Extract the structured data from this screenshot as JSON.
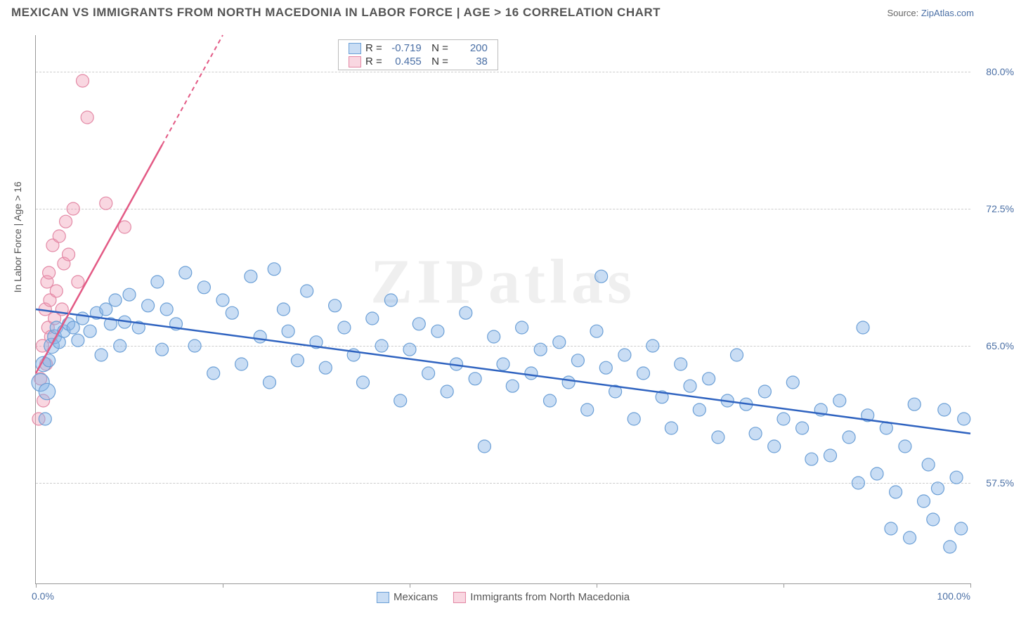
{
  "header": {
    "title": "MEXICAN VS IMMIGRANTS FROM NORTH MACEDONIA IN LABOR FORCE | AGE > 16 CORRELATION CHART",
    "source_prefix": "Source: ",
    "source_link": "ZipAtlas.com"
  },
  "watermark": "ZIPatlas",
  "chart": {
    "type": "scatter",
    "ylabel": "In Labor Force | Age > 16",
    "xlim": [
      0,
      100
    ],
    "ylim": [
      52,
      82
    ],
    "xtick_positions": [
      0,
      20,
      40,
      60,
      80,
      100
    ],
    "xtick_labels": {
      "0": "0.0%",
      "100": "100.0%"
    },
    "ytick_positions": [
      57.5,
      65.0,
      72.5,
      80.0
    ],
    "ytick_labels": [
      "57.5%",
      "65.0%",
      "72.5%",
      "80.0%"
    ],
    "background_color": "#ffffff",
    "grid_color": "#cccccc",
    "marker_radius_base": 9,
    "series": [
      {
        "id": "mexicans",
        "label": "Mexicans",
        "fill": "rgba(135,180,230,0.45)",
        "stroke": "#6b9fd6",
        "trend_color": "#2f63c0",
        "trend": {
          "x1": 0,
          "y1": 67.0,
          "x2": 100,
          "y2": 60.2
        },
        "r_value": "-0.719",
        "n_value": "200",
        "points": [
          [
            0.5,
            63.0,
            1.4
          ],
          [
            0.8,
            64.0,
            1.2
          ],
          [
            1.0,
            61.0,
            1.0
          ],
          [
            1.2,
            62.5,
            1.3
          ],
          [
            1.4,
            64.2,
            1.0
          ],
          [
            1.7,
            65.0,
            1.2
          ],
          [
            2.0,
            65.5,
            1.1
          ],
          [
            2.2,
            66.0,
            1.0
          ],
          [
            2.5,
            65.2,
            1.0
          ],
          [
            3.0,
            65.8,
            1.0
          ],
          [
            3.5,
            66.2,
            1.0
          ],
          [
            4.0,
            66.0,
            1.0
          ],
          [
            4.5,
            65.3,
            1.0
          ],
          [
            5.0,
            66.5,
            1.0
          ],
          [
            5.8,
            65.8,
            1.0
          ],
          [
            6.5,
            66.8,
            1.0
          ],
          [
            7.0,
            64.5,
            1.0
          ],
          [
            7.5,
            67.0,
            1.0
          ],
          [
            8.0,
            66.2,
            1.0
          ],
          [
            8.5,
            67.5,
            1.0
          ],
          [
            9.0,
            65.0,
            1.0
          ],
          [
            9.5,
            66.3,
            1.0
          ],
          [
            10.0,
            67.8,
            1.0
          ],
          [
            11.0,
            66.0,
            1.0
          ],
          [
            12.0,
            67.2,
            1.0
          ],
          [
            13.0,
            68.5,
            1.0
          ],
          [
            13.5,
            64.8,
            1.0
          ],
          [
            14.0,
            67.0,
            1.0
          ],
          [
            15.0,
            66.2,
            1.0
          ],
          [
            16.0,
            69.0,
            1.0
          ],
          [
            17.0,
            65.0,
            1.0
          ],
          [
            18.0,
            68.2,
            1.0
          ],
          [
            19.0,
            63.5,
            1.0
          ],
          [
            20.0,
            67.5,
            1.0
          ],
          [
            21.0,
            66.8,
            1.0
          ],
          [
            22.0,
            64.0,
            1.0
          ],
          [
            23.0,
            68.8,
            1.0
          ],
          [
            24.0,
            65.5,
            1.0
          ],
          [
            25.0,
            63.0,
            1.0
          ],
          [
            25.5,
            69.2,
            1.0
          ],
          [
            26.5,
            67.0,
            1.0
          ],
          [
            27.0,
            65.8,
            1.0
          ],
          [
            28.0,
            64.2,
            1.0
          ],
          [
            29.0,
            68.0,
            1.0
          ],
          [
            30.0,
            65.2,
            1.0
          ],
          [
            31.0,
            63.8,
            1.0
          ],
          [
            32.0,
            67.2,
            1.0
          ],
          [
            33.0,
            66.0,
            1.0
          ],
          [
            34.0,
            64.5,
            1.0
          ],
          [
            35.0,
            63.0,
            1.0
          ],
          [
            36.0,
            66.5,
            1.0
          ],
          [
            37.0,
            65.0,
            1.0
          ],
          [
            38.0,
            67.5,
            1.0
          ],
          [
            39.0,
            62.0,
            1.0
          ],
          [
            40.0,
            64.8,
            1.0
          ],
          [
            41.0,
            66.2,
            1.0
          ],
          [
            42.0,
            63.5,
            1.0
          ],
          [
            43.0,
            65.8,
            1.0
          ],
          [
            44.0,
            62.5,
            1.0
          ],
          [
            45.0,
            64.0,
            1.0
          ],
          [
            46.0,
            66.8,
            1.0
          ],
          [
            47.0,
            63.2,
            1.0
          ],
          [
            48.0,
            59.5,
            1.0
          ],
          [
            49.0,
            65.5,
            1.0
          ],
          [
            50.0,
            64.0,
            1.0
          ],
          [
            51.0,
            62.8,
            1.0
          ],
          [
            52.0,
            66.0,
            1.0
          ],
          [
            53.0,
            63.5,
            1.0
          ],
          [
            54.0,
            64.8,
            1.0
          ],
          [
            55.0,
            62.0,
            1.0
          ],
          [
            56.0,
            65.2,
            1.0
          ],
          [
            57.0,
            63.0,
            1.0
          ],
          [
            58.0,
            64.2,
            1.0
          ],
          [
            59.0,
            61.5,
            1.0
          ],
          [
            60.0,
            65.8,
            1.0
          ],
          [
            60.5,
            68.8,
            1.0
          ],
          [
            61.0,
            63.8,
            1.0
          ],
          [
            62.0,
            62.5,
            1.0
          ],
          [
            63.0,
            64.5,
            1.0
          ],
          [
            64.0,
            61.0,
            1.0
          ],
          [
            65.0,
            63.5,
            1.0
          ],
          [
            66.0,
            65.0,
            1.0
          ],
          [
            67.0,
            62.2,
            1.0
          ],
          [
            68.0,
            60.5,
            1.0
          ],
          [
            69.0,
            64.0,
            1.0
          ],
          [
            70.0,
            62.8,
            1.0
          ],
          [
            71.0,
            61.5,
            1.0
          ],
          [
            72.0,
            63.2,
            1.0
          ],
          [
            73.0,
            60.0,
            1.0
          ],
          [
            74.0,
            62.0,
            1.0
          ],
          [
            75.0,
            64.5,
            1.0
          ],
          [
            76.0,
            61.8,
            1.0
          ],
          [
            77.0,
            60.2,
            1.0
          ],
          [
            78.0,
            62.5,
            1.0
          ],
          [
            79.0,
            59.5,
            1.0
          ],
          [
            80.0,
            61.0,
            1.0
          ],
          [
            81.0,
            63.0,
            1.0
          ],
          [
            82.0,
            60.5,
            1.0
          ],
          [
            83.0,
            58.8,
            1.0
          ],
          [
            84.0,
            61.5,
            1.0
          ],
          [
            85.0,
            59.0,
            1.0
          ],
          [
            86.0,
            62.0,
            1.0
          ],
          [
            87.0,
            60.0,
            1.0
          ],
          [
            88.0,
            57.5,
            1.0
          ],
          [
            88.5,
            66.0,
            1.0
          ],
          [
            89.0,
            61.2,
            1.0
          ],
          [
            90.0,
            58.0,
            1.0
          ],
          [
            91.0,
            60.5,
            1.0
          ],
          [
            91.5,
            55.0,
            1.0
          ],
          [
            92.0,
            57.0,
            1.0
          ],
          [
            93.0,
            59.5,
            1.0
          ],
          [
            93.5,
            54.5,
            1.0
          ],
          [
            94.0,
            61.8,
            1.0
          ],
          [
            95.0,
            56.5,
            1.0
          ],
          [
            95.5,
            58.5,
            1.0
          ],
          [
            96.0,
            55.5,
            1.0
          ],
          [
            96.5,
            57.2,
            1.0
          ],
          [
            97.2,
            61.5,
            1.0
          ],
          [
            97.8,
            54.0,
            1.0
          ],
          [
            98.5,
            57.8,
            1.0
          ],
          [
            99.0,
            55.0,
            1.0
          ],
          [
            99.3,
            61.0,
            1.0
          ]
        ]
      },
      {
        "id": "macedonia",
        "label": "Immigrants from North Macedonia",
        "fill": "rgba(240,155,180,0.4)",
        "stroke": "#e388a5",
        "trend_color": "#e35a85",
        "trend": {
          "x1": 0,
          "y1": 63.5,
          "x2": 20,
          "y2": 82.0
        },
        "trend_dashed_after_y": 76,
        "r_value": "0.455",
        "n_value": "38",
        "points": [
          [
            0.3,
            61.0,
            1.0
          ],
          [
            0.5,
            63.2,
            1.0
          ],
          [
            0.7,
            65.0,
            1.0
          ],
          [
            0.8,
            62.0,
            1.0
          ],
          [
            1.0,
            67.0,
            1.0
          ],
          [
            1.1,
            64.0,
            1.0
          ],
          [
            1.2,
            68.5,
            1.0
          ],
          [
            1.3,
            66.0,
            1.0
          ],
          [
            1.4,
            69.0,
            1.0
          ],
          [
            1.5,
            67.5,
            1.0
          ],
          [
            1.6,
            65.5,
            1.0
          ],
          [
            1.8,
            70.5,
            1.0
          ],
          [
            2.0,
            66.5,
            1.0
          ],
          [
            2.2,
            68.0,
            1.0
          ],
          [
            2.5,
            71.0,
            1.0
          ],
          [
            2.8,
            67.0,
            1.0
          ],
          [
            3.0,
            69.5,
            1.0
          ],
          [
            3.2,
            71.8,
            1.0
          ],
          [
            3.5,
            70.0,
            1.0
          ],
          [
            4.0,
            72.5,
            1.0
          ],
          [
            4.5,
            68.5,
            1.0
          ],
          [
            5.0,
            79.5,
            1.0
          ],
          [
            5.5,
            77.5,
            1.0
          ],
          [
            7.5,
            72.8,
            1.0
          ],
          [
            9.5,
            71.5,
            1.0
          ]
        ]
      }
    ]
  }
}
